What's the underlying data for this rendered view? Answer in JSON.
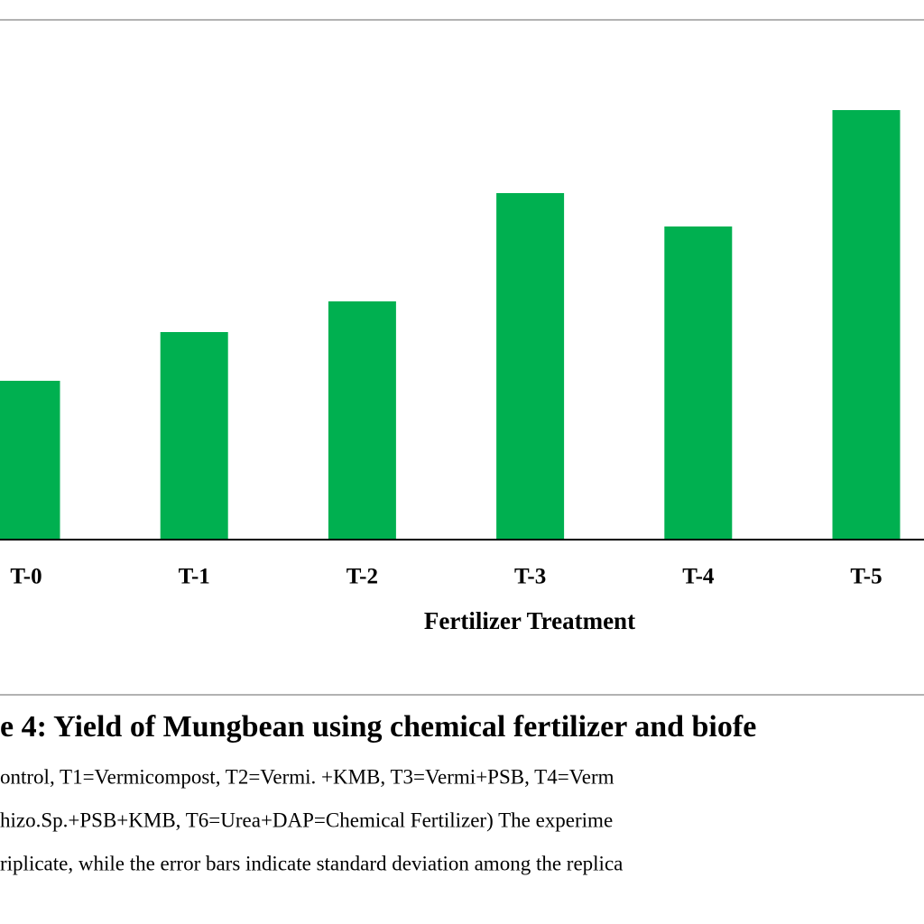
{
  "chart_data": {
    "type": "bar",
    "title": "e 4: Yield of Mungbean using chemical fertilizer and biofe",
    "x_label": "Fertilizer Treatment",
    "categories": [
      "T-0",
      "T-1",
      "T-2",
      "T-3",
      "T-4",
      "T-5"
    ],
    "values": [
      176,
      230,
      264,
      384,
      347,
      476
    ],
    "color": "#00b050",
    "caption_lines": [
      "ontrol, T1=Vermicompost, T2=Vermi. +KMB, T3=Vermi+PSB, T4=Verm",
      "hizo.Sp.+PSB+KMB, T6=Urea+DAP=Chemical Fertilizer) The experime",
      "riplicate, while the error bars indicate standard deviation among the replica"
    ]
  }
}
